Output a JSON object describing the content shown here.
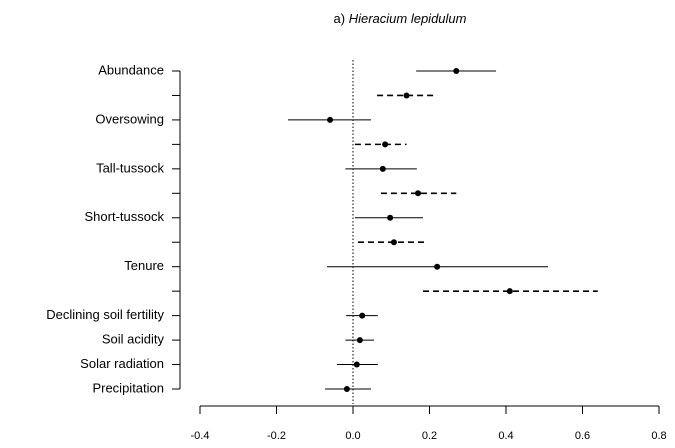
{
  "chart_data": {
    "type": "forest",
    "panel_label": "a)",
    "title": "Hieracium lepidulum",
    "categories": [
      "Abundance",
      null,
      "Oversowing",
      null,
      "Tall-tussock",
      null,
      "Short-tussock",
      null,
      "Tenure",
      null,
      "Declining soil fertility",
      "Soil acidity",
      "Solar radiation",
      "Precipitation"
    ],
    "values": [
      0.27,
      0.14,
      -0.06,
      0.084,
      0.078,
      0.17,
      0.097,
      0.107,
      0.22,
      0.41,
      0.024,
      0.018,
      0.01,
      -0.016
    ],
    "lower": [
      0.165,
      0.063,
      -0.17,
      0.005,
      -0.02,
      0.073,
      0.005,
      0.013,
      -0.068,
      0.183,
      -0.018,
      -0.02,
      -0.042,
      -0.073
    ],
    "upper": [
      0.374,
      0.22,
      0.047,
      0.14,
      0.167,
      0.27,
      0.183,
      0.186,
      0.51,
      0.64,
      0.065,
      0.055,
      0.065,
      0.047
    ],
    "linestyles": [
      "solid",
      "dashed",
      "solid",
      "dashed",
      "solid",
      "dashed",
      "solid",
      "dashed",
      "solid",
      "dashed",
      "solid",
      "solid",
      "solid",
      "solid"
    ],
    "color": "#000000",
    "reference_line": 0,
    "xlim": [
      -0.4,
      0.8
    ],
    "xticks": [
      -0.4,
      -0.2,
      {
        "value": 0,
        "label": "0.0"
      },
      0.2,
      0.4,
      0.6,
      0.8
    ]
  }
}
